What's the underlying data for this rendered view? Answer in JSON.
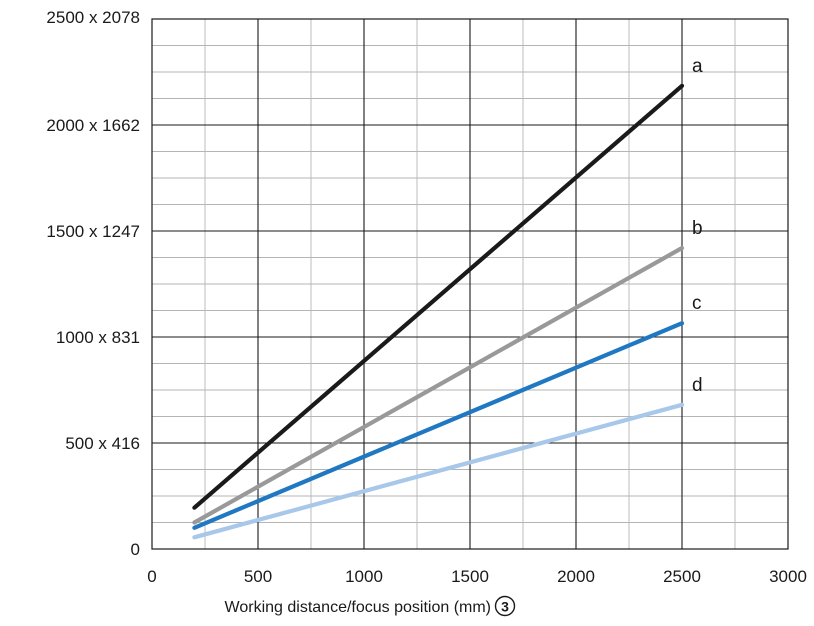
{
  "chart_data": {
    "type": "line",
    "title": "",
    "xlabel": "Working distance/focus position (mm)",
    "xlabel_marker": "3",
    "ylabel": "",
    "xlim": [
      0,
      3000
    ],
    "ylim": [
      0,
      2500
    ],
    "x_ticks": [
      0,
      500,
      1000,
      1500,
      2000,
      2500,
      3000
    ],
    "x_tick_labels": [
      "0",
      "500",
      "1000",
      "1500",
      "2000",
      "2500",
      "3000"
    ],
    "y_ticks": [
      0,
      500,
      1000,
      1500,
      2000,
      2500
    ],
    "y_tick_labels": [
      "0",
      "500 x 416",
      "1000 x 831",
      "1500 x 1247",
      "2000 x 1662",
      "2500 x 2078"
    ],
    "minor_grid_step_x": 250,
    "minor_grid_step_y": 125,
    "grid": true,
    "series": [
      {
        "name": "a",
        "color": "#1a1a1a",
        "x": [
          200,
          2500
        ],
        "y": [
          195,
          2185
        ]
      },
      {
        "name": "b",
        "color": "#999999",
        "x": [
          200,
          2500
        ],
        "y": [
          125,
          1420
        ]
      },
      {
        "name": "c",
        "color": "#1f78c1",
        "x": [
          200,
          2500
        ],
        "y": [
          100,
          1065
        ]
      },
      {
        "name": "d",
        "color": "#a8c8ea",
        "x": [
          200,
          2500
        ],
        "y": [
          55,
          680
        ]
      }
    ]
  }
}
